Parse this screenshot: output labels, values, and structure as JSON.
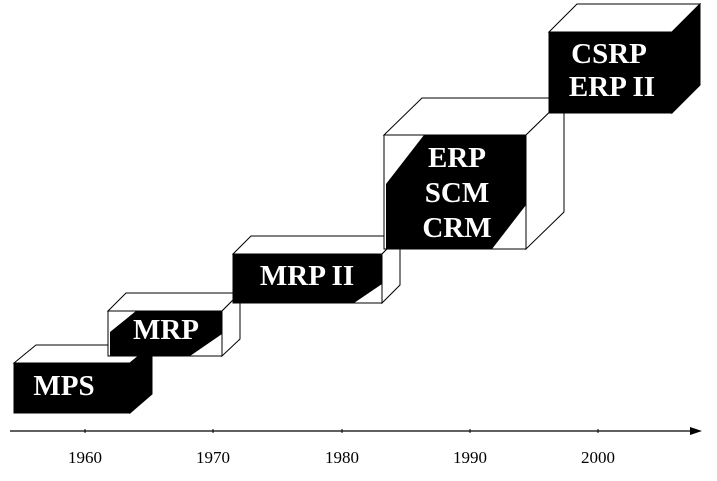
{
  "diagram": {
    "stages": [
      {
        "id": "mps",
        "lines": [
          "MPS"
        ]
      },
      {
        "id": "mrp",
        "lines": [
          "MRP"
        ]
      },
      {
        "id": "mrp2",
        "lines": [
          "MRP II"
        ]
      },
      {
        "id": "erp",
        "lines": [
          "ERP",
          "SCM",
          "CRM"
        ]
      },
      {
        "id": "csrp",
        "lines": [
          "CSRP",
          "ERP II"
        ]
      }
    ],
    "timeline": {
      "ticks": [
        "1960",
        "1970",
        "1980",
        "1990",
        "2000"
      ]
    },
    "colors": {
      "fill": "#000000",
      "stroke": "#000000",
      "text": "#ffffff",
      "background": "#ffffff"
    }
  }
}
